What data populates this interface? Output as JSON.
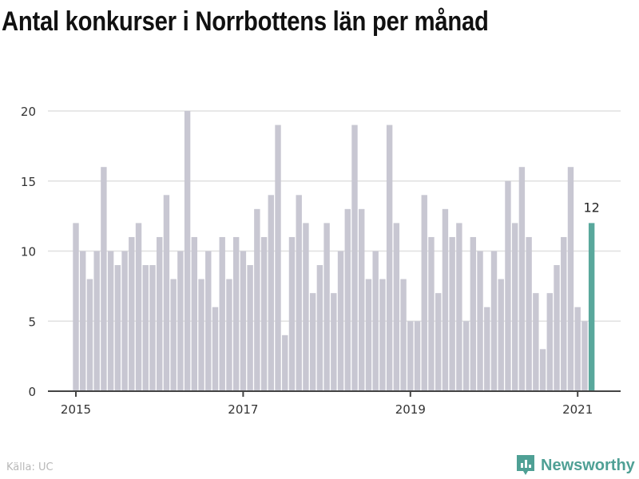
{
  "chart_data": {
    "type": "bar",
    "title": "Antal konkurser i Norrbottens län per månad",
    "xlabel": "",
    "ylabel": "",
    "ylim": [
      0,
      20
    ],
    "yticks": [
      0,
      5,
      10,
      15,
      20
    ],
    "xticks": [
      "2015",
      "2017",
      "2019",
      "2021"
    ],
    "start": "2015-01",
    "values": [
      12,
      10,
      8,
      10,
      16,
      10,
      9,
      10,
      11,
      12,
      9,
      9,
      11,
      14,
      8,
      10,
      20,
      11,
      8,
      10,
      6,
      11,
      8,
      11,
      10,
      9,
      13,
      11,
      14,
      19,
      4,
      11,
      14,
      12,
      7,
      9,
      12,
      7,
      10,
      13,
      19,
      13,
      8,
      10,
      8,
      19,
      12,
      8,
      5,
      5,
      14,
      11,
      7,
      13,
      11,
      12,
      5,
      11,
      10,
      6,
      10,
      8,
      15,
      12,
      16,
      11,
      7,
      3,
      7,
      9,
      11,
      16,
      6,
      5,
      12
    ],
    "highlight_label": "12",
    "grid": true,
    "colors": {
      "bar": "#c8c7d2",
      "highlight": "#59a89c",
      "grid": "#e0e0e0",
      "axis": "#444444"
    }
  },
  "source": "Källa: UC",
  "brand": "Newsworthy"
}
